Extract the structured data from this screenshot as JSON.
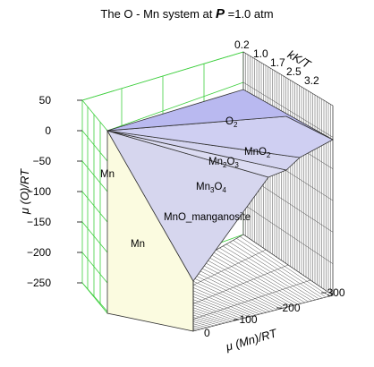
{
  "chart_data": {
    "type": "surface3d",
    "title_parts": {
      "prefix": "The O - Mn system at ",
      "var": "P",
      "suffix": " =1.0 atm"
    },
    "zlabel": "μ (O)/RT",
    "xlabel": "μ (Mn)/RT",
    "ylabel": "kK/T",
    "z_ticks": [
      "50",
      "0",
      "−50",
      "−100",
      "−150",
      "−200",
      "−250"
    ],
    "x_ticks": [
      "0",
      "−100",
      "−200",
      "−300"
    ],
    "y_ticks": [
      "0.2",
      "1.0",
      "1.7",
      "2.5",
      "3.2"
    ],
    "zlim": [
      -250,
      50
    ],
    "xlim": [
      0,
      -300
    ],
    "ylim": [
      0.2,
      3.2
    ],
    "regions": [
      {
        "name": "O2",
        "label_main": "O",
        "label_sub": "2",
        "color": "#b9b9f0"
      },
      {
        "name": "MnO2",
        "label_main": "MnO",
        "label_sub": "2",
        "color": "#cfcff2"
      },
      {
        "name": "Mn2O3",
        "label_main": "Mn",
        "label_sub": "2",
        "label_main2": "O",
        "label_sub2": "3",
        "color": "#d4d4f0"
      },
      {
        "name": "Mn3O4",
        "label_main": "Mn",
        "label_sub": "3",
        "label_main2": "O",
        "label_sub2": "4",
        "color": "#dcdcf2"
      },
      {
        "name": "MnO_manganosite",
        "label_main": "MnO_manganosite",
        "color": "#d6d6ee"
      },
      {
        "name": "Mn",
        "label_main": "Mn",
        "color": "#fbfbe0"
      }
    ],
    "grid": true
  }
}
